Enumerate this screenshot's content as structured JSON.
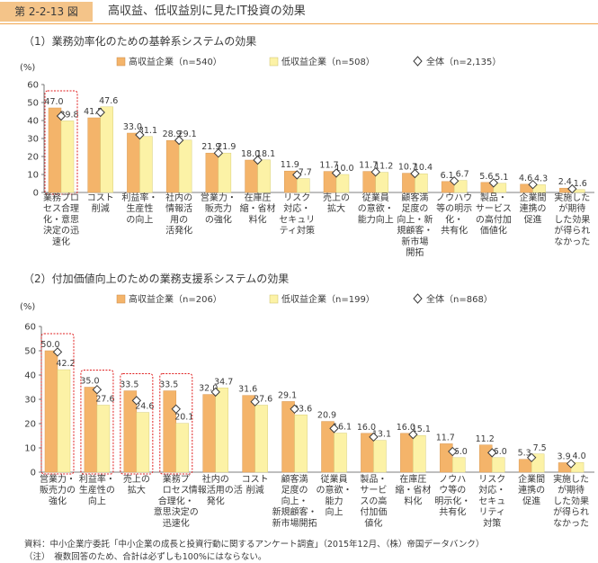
{
  "header": {
    "figure_label": "第 2-2-13 図",
    "title": "高収益、低収益別に見たIT投資の効果"
  },
  "colors": {
    "high": "#f4b46a",
    "low": "#fcf2a6",
    "marker_fill": "#ffffff",
    "marker_stroke": "#3a3a3a",
    "highlight": "#e02020",
    "header_accent": "#f4c489"
  },
  "chart_data": [
    {
      "type": "bar",
      "title": "（1）業務効率化のための基幹系システムの効果",
      "ylabel": "(%)",
      "ylim": [
        0,
        60
      ],
      "yticks": [
        "0",
        "10",
        "20",
        "30",
        "40",
        "50",
        "60"
      ],
      "grid": false,
      "legend": "top",
      "categories": [
        [
          "業務プロ",
          "セス合理",
          "化・意思",
          "決定の迅",
          "速化"
        ],
        [
          "コスト",
          "削減"
        ],
        [
          "利益率・",
          "生産性",
          "の向上"
        ],
        [
          "社内の",
          "情報活",
          "用の",
          "活発化"
        ],
        [
          "営業力・",
          "販売力",
          "の強化"
        ],
        [
          "在庫圧",
          "縮・省材",
          "料化"
        ],
        [
          "リスク",
          "対応・",
          "セキュリ",
          "ティ対策"
        ],
        [
          "売上の",
          "拡大"
        ],
        [
          "従業員",
          "の意欲・",
          "能力向上"
        ],
        [
          "顧客満",
          "足度の",
          "向上・新",
          "規顧客・",
          "新市場",
          "開拓"
        ],
        [
          "ノウハウ",
          "等の明示",
          "化・",
          "共有化"
        ],
        [
          "製品・",
          "サービス",
          "の高付加",
          "価値化"
        ],
        [
          "企業間",
          "連携の",
          "促進"
        ],
        [
          "実施した",
          "が期待",
          "した効果",
          "が得られ",
          "なかった"
        ]
      ],
      "series": [
        {
          "name": "高収益企業（n=540）",
          "values": [
            47.0,
            41.5,
            33.0,
            28.9,
            21.9,
            18.0,
            11.9,
            11.7,
            11.7,
            10.7,
            6.1,
            5.6,
            4.6,
            2.4
          ]
        },
        {
          "name": "低収益企業（n=508）",
          "values": [
            39.8,
            47.6,
            31.1,
            29.1,
            21.9,
            18.1,
            7.7,
            10.0,
            11.2,
            10.4,
            6.7,
            5.1,
            4.3,
            1.6
          ]
        }
      ],
      "overall": {
        "name": "全体（n=2,135）",
        "values": [
          42.5,
          44.5,
          32.0,
          29.0,
          21.9,
          18.0,
          9.8,
          10.8,
          11.4,
          10.5,
          6.4,
          5.3,
          4.4,
          2.0
        ]
      },
      "highlighted_categories": [
        0
      ]
    },
    {
      "type": "bar",
      "title": "（2）付加価値向上のための業務支援系システムの効果",
      "ylabel": "(%)",
      "ylim": [
        0,
        60
      ],
      "yticks": [
        "0",
        "10",
        "20",
        "30",
        "40",
        "50",
        "60"
      ],
      "grid": false,
      "legend": "top",
      "categories": [
        [
          "営業力・",
          "販売力の",
          "強化"
        ],
        [
          "利益率・",
          "生産性の",
          "向上"
        ],
        [
          "売上の",
          "拡大"
        ],
        [
          "業務プ",
          "ロセス",
          "合理化・",
          "意思決定の",
          "迅速化"
        ],
        [
          "社内の",
          "情報活用の活",
          "発化"
        ],
        [
          "コスト",
          "削減"
        ],
        [
          "顧客満",
          "足度の",
          "向上・",
          "新規顧客・",
          "新市場開拓"
        ],
        [
          "従業員",
          "の意欲・",
          "能力",
          "向上"
        ],
        [
          "製品・",
          "サービ",
          "スの高",
          "付加価",
          "値化"
        ],
        [
          "在庫圧",
          "縮・省材",
          "料化"
        ],
        [
          "ノウハ",
          "ウ等の",
          "明示化・",
          "共有化"
        ],
        [
          "リスク",
          "対応・",
          "セキュ",
          "リティ",
          "対策"
        ],
        [
          "企業間",
          "連携の",
          "促進"
        ],
        [
          "実施した",
          "が期待",
          "した効果",
          "が得られ",
          "なかった"
        ]
      ],
      "series": [
        {
          "name": "高収益企業（n=206）",
          "values": [
            50.0,
            35.0,
            33.5,
            33.5,
            32.0,
            31.6,
            29.1,
            20.9,
            16.0,
            16.0,
            11.7,
            11.2,
            5.3,
            3.9
          ]
        },
        {
          "name": "低収益企業（n=199）",
          "values": [
            42.2,
            27.6,
            24.6,
            20.1,
            34.7,
            27.6,
            23.6,
            16.1,
            13.1,
            15.1,
            6.0,
            6.0,
            7.5,
            4.0
          ]
        }
      ],
      "overall": {
        "name": "全体（n=868）",
        "values": [
          49.5,
          34.0,
          29.5,
          26.0,
          33.0,
          29.0,
          26.0,
          18.0,
          14.5,
          15.5,
          8.5,
          8.0,
          6.0,
          3.5
        ]
      },
      "highlighted_categories": [
        0,
        1,
        2,
        3
      ]
    }
  ],
  "notes": {
    "source": "資料：中小企業庁委託「中小企業の成長と投資行動に関するアンケート調査」（2015年12月、（株）帝国データバンク）",
    "caveat": "（注）　複数回答のため、合計は必ずしも100%にはならない。"
  }
}
